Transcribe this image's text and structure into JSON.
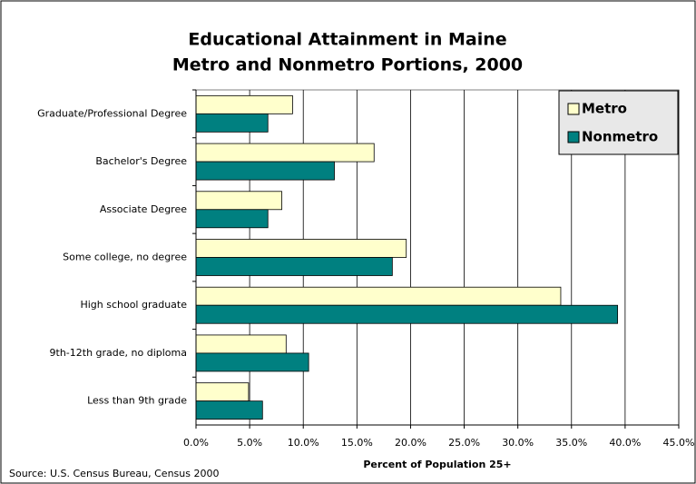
{
  "chart_data": {
    "type": "hbar",
    "title": "Educational Attainment in Maine",
    "subtitle": "Metro and Nonmetro Portions, 2000",
    "x_label": "Percent of Population 25+",
    "source": "Source: U.S. Census Bureau, Census 2000",
    "categories": [
      "Graduate/Professional Degree",
      "Bachelor's Degree",
      "Associate Degree",
      "Some college, no degree",
      "High school graduate",
      "9th-12th grade, no diploma",
      "Less than 9th grade"
    ],
    "series": [
      {
        "name": "Metro",
        "color": "#ffffcc",
        "values": [
          9.0,
          16.6,
          8.0,
          19.6,
          34.0,
          8.4,
          4.9
        ]
      },
      {
        "name": "Nonmetro",
        "color": "#008080",
        "values": [
          6.7,
          12.9,
          6.7,
          18.3,
          39.3,
          10.5,
          6.2
        ]
      }
    ],
    "xlim": [
      0,
      45
    ],
    "xticks": [
      {
        "value": 0,
        "label": "0.0%"
      },
      {
        "value": 5,
        "label": "5.0%"
      },
      {
        "value": 10,
        "label": "10.0%"
      },
      {
        "value": 15,
        "label": "15.0%"
      },
      {
        "value": 20,
        "label": "20.0%"
      },
      {
        "value": 25,
        "label": "25.0%"
      },
      {
        "value": 30,
        "label": "30.0%"
      },
      {
        "value": 35,
        "label": "35.0%"
      },
      {
        "value": 40,
        "label": "40.0%"
      },
      {
        "value": 45,
        "label": "45.0%"
      }
    ],
    "grid": true,
    "legend": "top-right"
  }
}
